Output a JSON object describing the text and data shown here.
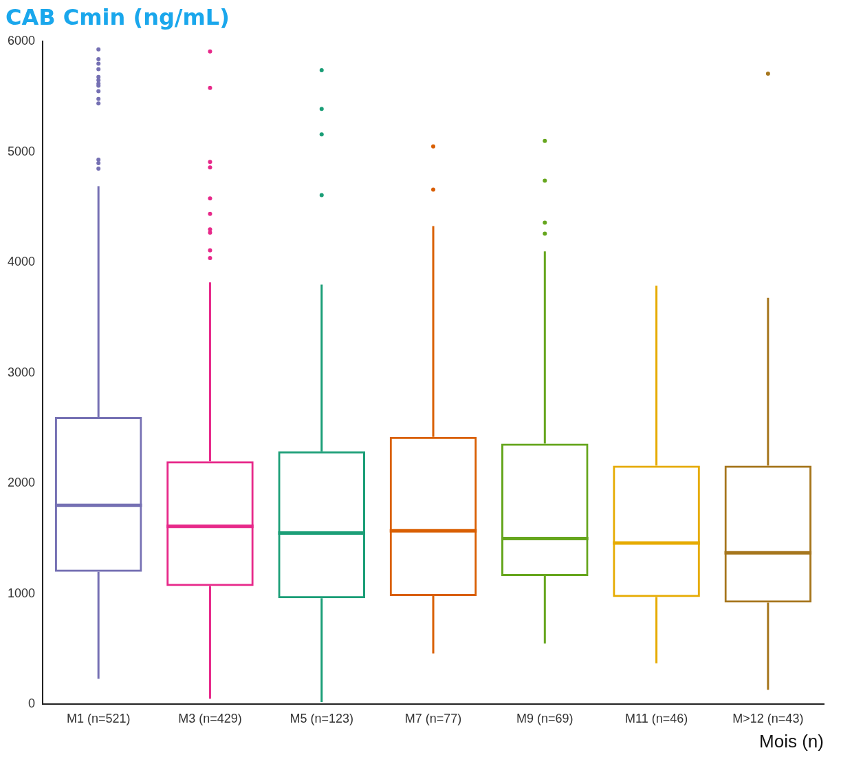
{
  "chart_data": {
    "type": "box",
    "title": "CAB Cmin (ng/mL)",
    "xlabel": "Mois (n)",
    "categories": [
      "M1 (n=521)",
      "M3 (n=429)",
      "M5 (n=123)",
      "M7 (n=77)",
      "M9 (n=69)",
      "M11 (n=46)",
      "M>12 (n=43)"
    ],
    "colors": [
      "#7570b3",
      "#e7298a",
      "#1b9e77",
      "#d95f02",
      "#66a61e",
      "#e6ab02",
      "#a6761d"
    ],
    "boxes": [
      {
        "low": 230,
        "q1": 1200,
        "median": 1800,
        "q3": 2600,
        "high": 4690,
        "outliers": [
          5930,
          5840,
          5800,
          5750,
          5680,
          5650,
          5620,
          5600,
          5550,
          5480,
          5440,
          4930,
          4900,
          4850
        ]
      },
      {
        "low": 50,
        "q1": 1070,
        "median": 1610,
        "q3": 2200,
        "high": 3820,
        "outliers": [
          5910,
          5580,
          4910,
          4860,
          4580,
          4440,
          4300,
          4270,
          4110,
          4040
        ]
      },
      {
        "low": 20,
        "q1": 960,
        "median": 1550,
        "q3": 2290,
        "high": 3800,
        "outliers": [
          5740,
          5390,
          5160,
          4610
        ]
      },
      {
        "low": 460,
        "q1": 980,
        "median": 1570,
        "q3": 2420,
        "high": 4330,
        "outliers": [
          5050,
          4660
        ]
      },
      {
        "low": 550,
        "q1": 1160,
        "median": 1500,
        "q3": 2360,
        "high": 4100,
        "outliers": [
          5100,
          4740,
          4360,
          4260
        ]
      },
      {
        "low": 370,
        "q1": 970,
        "median": 1460,
        "q3": 2160,
        "high": 3790
      },
      {
        "low": 130,
        "q1": 920,
        "median": 1370,
        "q3": 2160,
        "high": 3680,
        "outliers": [
          5710
        ]
      }
    ],
    "ylim": [
      0,
      6000
    ],
    "yticks": [
      0,
      1000,
      2000,
      3000,
      4000,
      5000,
      6000
    ],
    "grid": false,
    "legend": false
  }
}
